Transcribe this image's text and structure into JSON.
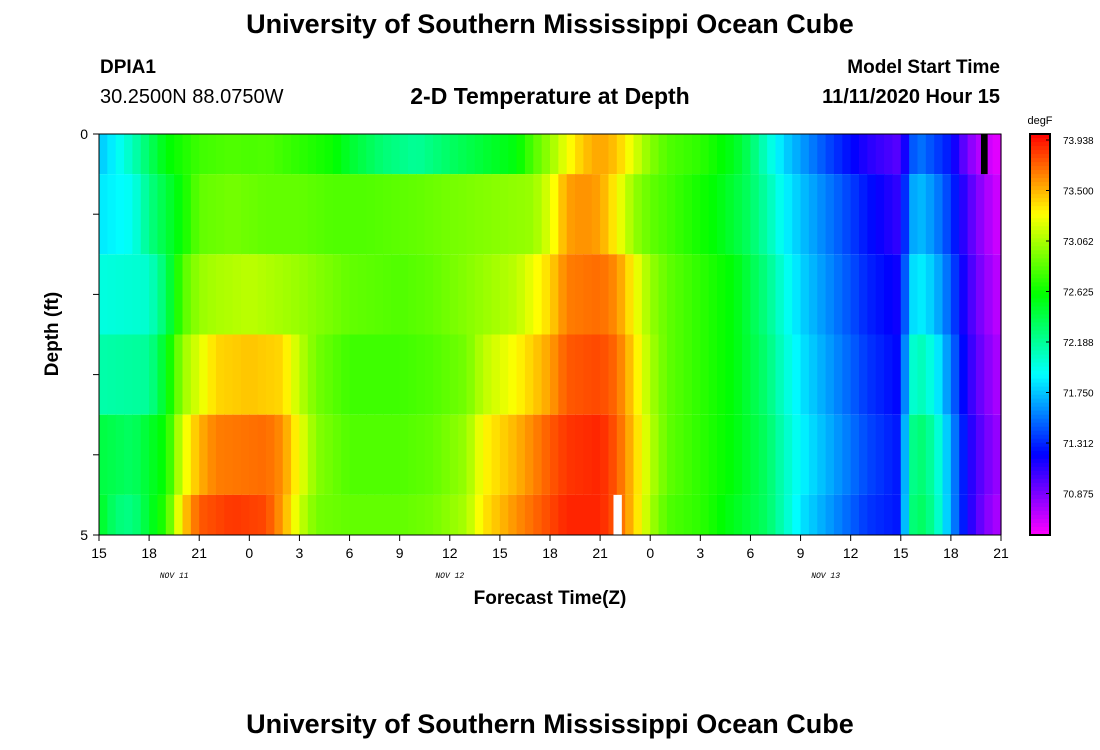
{
  "header": {
    "title": "University of Southern Mississippi Ocean Cube",
    "station_id": "DPIA1",
    "station_coords": "30.2500N 88.0750W",
    "chart_title": "2-D Temperature at Depth",
    "model_start_label": "Model Start Time",
    "model_start_value": "11/11/2020 Hour 15"
  },
  "footer": {
    "title": "University of Southern Mississippi Ocean Cube"
  },
  "chart_data": {
    "type": "heatmap",
    "title": "2-D Temperature at Depth",
    "xlabel": "Forecast Time(Z)",
    "ylabel": "Depth (ft)",
    "colorbar_unit": "degF",
    "colorbar_ticks": [
      "73.938",
      "73.500",
      "73.062",
      "72.625",
      "72.188",
      "71.750",
      "71.312",
      "70.875"
    ],
    "colorbar_range": [
      70.44,
      74.0
    ],
    "x_ticks": [
      "15",
      "18",
      "21",
      "0",
      "3",
      "6",
      "9",
      "12",
      "15",
      "18",
      "21",
      "0",
      "3",
      "6",
      "9",
      "12",
      "15",
      "18",
      "21"
    ],
    "x_day_labels": [
      {
        "text": "NOV  11",
        "tick_index": 1.5
      },
      {
        "text": "NOV  12",
        "tick_index": 7
      },
      {
        "text": "NOV  13",
        "tick_index": 14.5
      }
    ],
    "y_ticks": [
      "0",
      "5"
    ],
    "y_range": [
      0,
      5
    ],
    "x_hour_start": 0,
    "x_hour_end": 54,
    "layers": [
      {
        "depth_range": [
          0,
          0.5
        ],
        "temperature_profile": [
          [
            0,
            71.7
          ],
          [
            1,
            71.85
          ],
          [
            2,
            72.05
          ],
          [
            3,
            72.3
          ],
          [
            4,
            72.55
          ],
          [
            6,
            72.75
          ],
          [
            8,
            72.8
          ],
          [
            9,
            72.78
          ],
          [
            10,
            72.8
          ],
          [
            12,
            72.7
          ],
          [
            14,
            72.6
          ],
          [
            15,
            72.45
          ],
          [
            17,
            72.25
          ],
          [
            19,
            72.15
          ],
          [
            21,
            72.3
          ],
          [
            25,
            72.55
          ],
          [
            26,
            72.8
          ],
          [
            27,
            73.0
          ],
          [
            28,
            73.25
          ],
          [
            29,
            73.45
          ],
          [
            30,
            73.55
          ],
          [
            31,
            73.45
          ],
          [
            32,
            73.2
          ],
          [
            33,
            72.95
          ],
          [
            34,
            72.8
          ],
          [
            36,
            72.7
          ],
          [
            38,
            72.5
          ],
          [
            39,
            72.3
          ],
          [
            40,
            72.0
          ],
          [
            41,
            71.75
          ],
          [
            42,
            71.6
          ],
          [
            43,
            71.45
          ],
          [
            44,
            71.3
          ],
          [
            46,
            71.05
          ],
          [
            48,
            70.9
          ],
          [
            48.5,
            71.3
          ],
          [
            49,
            71.5
          ],
          [
            50,
            71.35
          ],
          [
            51,
            71.2
          ],
          [
            52,
            70.8
          ],
          [
            53,
            70.6
          ],
          [
            54,
            70.5
          ]
        ]
      },
      {
        "depth_range": [
          0.5,
          1.5
        ],
        "temperature_profile": [
          [
            0,
            71.8
          ],
          [
            2,
            71.9
          ],
          [
            3,
            72.2
          ],
          [
            4,
            72.4
          ],
          [
            5,
            72.6
          ],
          [
            6,
            72.85
          ],
          [
            8,
            72.9
          ],
          [
            10,
            72.85
          ],
          [
            12,
            72.85
          ],
          [
            14,
            72.8
          ],
          [
            16,
            72.8
          ],
          [
            19,
            72.85
          ],
          [
            21,
            72.9
          ],
          [
            26,
            73.0
          ],
          [
            27,
            73.2
          ],
          [
            28,
            73.55
          ],
          [
            29,
            73.6
          ],
          [
            30,
            73.55
          ],
          [
            31,
            73.3
          ],
          [
            32,
            73.0
          ],
          [
            33,
            72.85
          ],
          [
            35,
            72.7
          ],
          [
            37,
            72.55
          ],
          [
            39,
            72.3
          ],
          [
            40,
            72.1
          ],
          [
            41,
            71.85
          ],
          [
            42,
            71.7
          ],
          [
            44,
            71.45
          ],
          [
            46,
            71.2
          ],
          [
            48,
            71.0
          ],
          [
            48.5,
            71.55
          ],
          [
            49,
            71.7
          ],
          [
            50,
            71.55
          ],
          [
            51,
            71.3
          ],
          [
            52,
            70.95
          ],
          [
            53,
            70.7
          ],
          [
            54,
            70.55
          ]
        ]
      },
      {
        "depth_range": [
          1.5,
          2.5
        ],
        "temperature_profile": [
          [
            0,
            71.95
          ],
          [
            3,
            72.0
          ],
          [
            4,
            72.3
          ],
          [
            5,
            72.8
          ],
          [
            6,
            73.0
          ],
          [
            7,
            73.05
          ],
          [
            9,
            73.1
          ],
          [
            12,
            73.0
          ],
          [
            13,
            72.95
          ],
          [
            15,
            72.85
          ],
          [
            18,
            72.8
          ],
          [
            20,
            72.85
          ],
          [
            22,
            72.95
          ],
          [
            25,
            73.1
          ],
          [
            27,
            73.4
          ],
          [
            28,
            73.65
          ],
          [
            30,
            73.7
          ],
          [
            31,
            73.6
          ],
          [
            32,
            73.3
          ],
          [
            33,
            73.0
          ],
          [
            34,
            72.85
          ],
          [
            36,
            72.7
          ],
          [
            38,
            72.55
          ],
          [
            40,
            72.2
          ],
          [
            41,
            71.95
          ],
          [
            42,
            71.75
          ],
          [
            44,
            71.5
          ],
          [
            46,
            71.25
          ],
          [
            48,
            71.1
          ],
          [
            48.5,
            71.7
          ],
          [
            49,
            71.85
          ],
          [
            50,
            71.7
          ],
          [
            51,
            71.4
          ],
          [
            52,
            71.0
          ],
          [
            53,
            70.75
          ],
          [
            54,
            70.6
          ]
        ]
      },
      {
        "depth_range": [
          2.5,
          3.5
        ],
        "temperature_profile": [
          [
            0,
            72.1
          ],
          [
            3,
            72.15
          ],
          [
            4,
            72.5
          ],
          [
            5,
            73.0
          ],
          [
            6,
            73.2
          ],
          [
            7,
            73.4
          ],
          [
            9,
            73.45
          ],
          [
            11,
            73.4
          ],
          [
            12,
            73.1
          ],
          [
            13,
            72.9
          ],
          [
            15,
            72.75
          ],
          [
            18,
            72.75
          ],
          [
            20,
            72.8
          ],
          [
            22,
            72.9
          ],
          [
            23,
            73.1
          ],
          [
            25,
            73.3
          ],
          [
            27,
            73.55
          ],
          [
            28,
            73.75
          ],
          [
            30,
            73.8
          ],
          [
            31,
            73.7
          ],
          [
            32,
            73.4
          ],
          [
            33,
            73.05
          ],
          [
            34,
            72.85
          ],
          [
            36,
            72.7
          ],
          [
            38,
            72.55
          ],
          [
            40,
            72.25
          ],
          [
            41,
            72.0
          ],
          [
            42,
            71.8
          ],
          [
            44,
            71.55
          ],
          [
            46,
            71.3
          ],
          [
            48,
            71.15
          ],
          [
            48.5,
            71.9
          ],
          [
            49,
            72.1
          ],
          [
            50,
            71.9
          ],
          [
            51,
            71.5
          ],
          [
            52,
            71.05
          ],
          [
            53,
            70.8
          ],
          [
            54,
            70.65
          ]
        ]
      },
      {
        "depth_range": [
          3.5,
          4.5
        ],
        "temperature_profile": [
          [
            0,
            72.4
          ],
          [
            2,
            72.3
          ],
          [
            4,
            72.6
          ],
          [
            5,
            73.2
          ],
          [
            6,
            73.5
          ],
          [
            7,
            73.65
          ],
          [
            10,
            73.7
          ],
          [
            11,
            73.6
          ],
          [
            12,
            73.25
          ],
          [
            13,
            72.95
          ],
          [
            15,
            72.8
          ],
          [
            18,
            72.8
          ],
          [
            20,
            72.85
          ],
          [
            22,
            73.0
          ],
          [
            23,
            73.3
          ],
          [
            25,
            73.5
          ],
          [
            27,
            73.75
          ],
          [
            28,
            73.85
          ],
          [
            30,
            73.9
          ],
          [
            31,
            73.75
          ],
          [
            32,
            73.45
          ],
          [
            33,
            73.1
          ],
          [
            34,
            72.85
          ],
          [
            36,
            72.7
          ],
          [
            38,
            72.55
          ],
          [
            40,
            72.3
          ],
          [
            41,
            72.05
          ],
          [
            42,
            71.85
          ],
          [
            44,
            71.6
          ],
          [
            46,
            71.35
          ],
          [
            48,
            71.2
          ],
          [
            48.5,
            72.1
          ],
          [
            49,
            72.3
          ],
          [
            50,
            72.1
          ],
          [
            51,
            71.6
          ],
          [
            52,
            71.1
          ],
          [
            53,
            70.85
          ],
          [
            54,
            70.7
          ]
        ]
      },
      {
        "depth_range": [
          4.5,
          5.0
        ],
        "temperature_profile": [
          [
            0,
            72.5
          ],
          [
            1,
            72.25
          ],
          [
            2,
            72.2
          ],
          [
            4,
            72.7
          ],
          [
            5,
            73.4
          ],
          [
            6,
            73.75
          ],
          [
            8,
            73.85
          ],
          [
            10,
            73.8
          ],
          [
            11,
            73.55
          ],
          [
            12,
            73.15
          ],
          [
            13,
            72.9
          ],
          [
            15,
            72.85
          ],
          [
            18,
            72.85
          ],
          [
            20,
            72.9
          ],
          [
            22,
            73.05
          ],
          [
            23,
            73.35
          ],
          [
            25,
            73.6
          ],
          [
            27,
            73.8
          ],
          [
            28,
            73.9
          ],
          [
            30,
            73.9
          ],
          [
            31,
            73.75
          ],
          [
            32,
            73.45
          ],
          [
            33,
            73.05
          ],
          [
            34,
            72.8
          ],
          [
            36,
            72.7
          ],
          [
            38,
            72.5
          ],
          [
            40,
            72.3
          ],
          [
            41,
            72.05
          ],
          [
            42,
            71.8
          ],
          [
            44,
            71.55
          ],
          [
            46,
            71.3
          ],
          [
            48,
            71.2
          ],
          [
            48.5,
            72.15
          ],
          [
            49,
            72.35
          ],
          [
            50,
            72.15
          ],
          [
            51,
            71.6
          ],
          [
            52,
            71.1
          ],
          [
            53,
            70.8
          ],
          [
            54,
            70.65
          ]
        ]
      }
    ],
    "markers": [
      {
        "color": "#ffffff",
        "hour_range": [
          30.8,
          31.3
        ],
        "depth_range": [
          4.5,
          5.0
        ]
      },
      {
        "color": "#000000",
        "hour_range": [
          52.8,
          53.2
        ],
        "depth_range": [
          0,
          0.5
        ]
      }
    ]
  }
}
